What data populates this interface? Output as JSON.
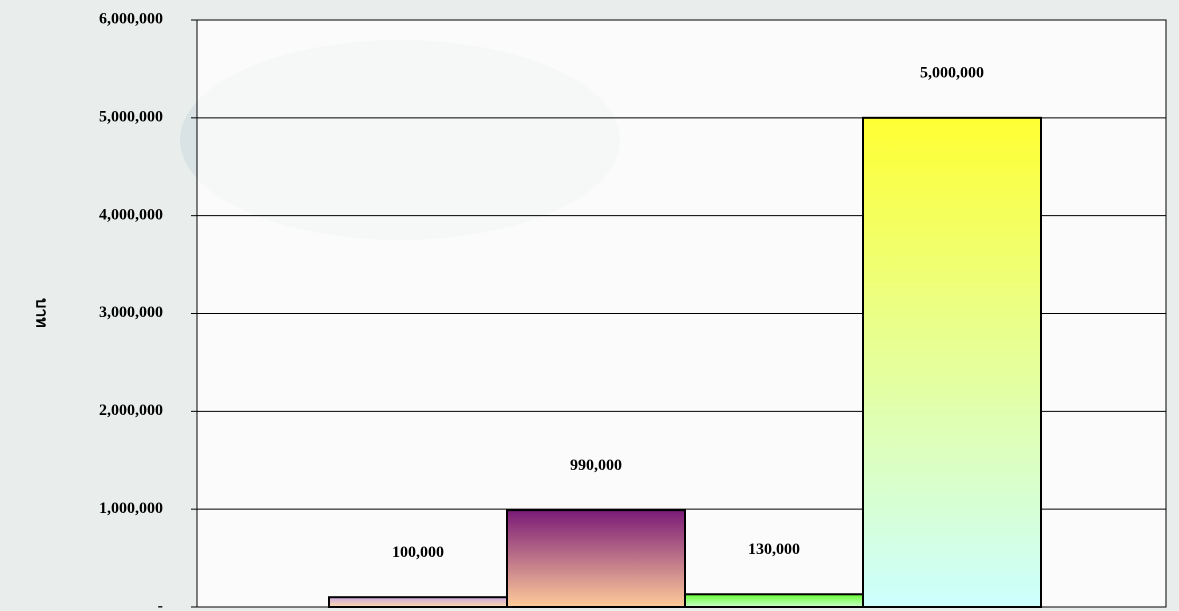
{
  "chart_data": {
    "type": "bar",
    "y_label": "บาท",
    "categories": [
      null,
      null,
      null,
      null
    ],
    "values": [
      100000,
      990000,
      130000,
      5000000
    ],
    "value_labels": [
      "100,000",
      "990,000",
      "130,000",
      "5,000,000"
    ],
    "colors": [
      {
        "top": "#c9a8e0",
        "bottom": "#ffd9a8"
      },
      {
        "top": "#7a1a78",
        "bottom": "#ffcc99"
      },
      {
        "top": "#66ff33",
        "bottom": "#ccffcc"
      },
      {
        "top": "#ffff33",
        "bottom": "#ccffff"
      }
    ],
    "ylim": [
      0,
      6000000
    ],
    "yticks": [
      {
        "value": 0,
        "label": "-"
      },
      {
        "value": 1000000,
        "label": "1,000,000"
      },
      {
        "value": 2000000,
        "label": "2,000,000"
      },
      {
        "value": 3000000,
        "label": "3,000,000"
      },
      {
        "value": 4000000,
        "label": "4,000,000"
      },
      {
        "value": 5000000,
        "label": "5,000,000"
      },
      {
        "value": 6000000,
        "label": "6,000,000"
      }
    ],
    "grid": true
  }
}
